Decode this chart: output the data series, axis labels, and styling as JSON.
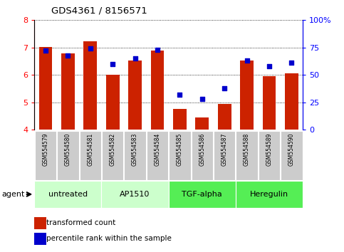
{
  "title": "GDS4361 / 8156571",
  "samples": [
    "GSM554579",
    "GSM554580",
    "GSM554581",
    "GSM554582",
    "GSM554583",
    "GSM554584",
    "GSM554585",
    "GSM554586",
    "GSM554587",
    "GSM554588",
    "GSM554589",
    "GSM554590"
  ],
  "bar_values": [
    7.02,
    6.8,
    7.22,
    6.0,
    6.52,
    6.9,
    4.75,
    4.45,
    4.95,
    6.52,
    5.95,
    6.05
  ],
  "percentile_values": [
    72,
    68,
    74,
    60,
    65,
    73,
    32,
    28,
    38,
    63,
    58,
    61
  ],
  "bar_color": "#cc2200",
  "dot_color": "#0000cc",
  "ylim_left": [
    4,
    8
  ],
  "ylim_right": [
    0,
    100
  ],
  "yticks_left": [
    4,
    5,
    6,
    7,
    8
  ],
  "yticks_right": [
    0,
    25,
    50,
    75,
    100
  ],
  "ytick_labels_right": [
    "0",
    "25",
    "50",
    "75",
    "100%"
  ],
  "groups": [
    {
      "label": "untreated",
      "indices": [
        0,
        1,
        2
      ],
      "color": "#ccffcc"
    },
    {
      "label": "AP1510",
      "indices": [
        3,
        4,
        5
      ],
      "color": "#ccffcc"
    },
    {
      "label": "TGF-alpha",
      "indices": [
        6,
        7,
        8
      ],
      "color": "#55ee55"
    },
    {
      "label": "Heregulin",
      "indices": [
        9,
        10,
        11
      ],
      "color": "#55ee55"
    }
  ],
  "legend_bar_label": "transformed count",
  "legend_dot_label": "percentile rank within the sample",
  "agent_label": "agent",
  "bg_color": "#ffffff",
  "grid_color": "#000000",
  "sample_box_color": "#cccccc",
  "bar_width": 0.6
}
